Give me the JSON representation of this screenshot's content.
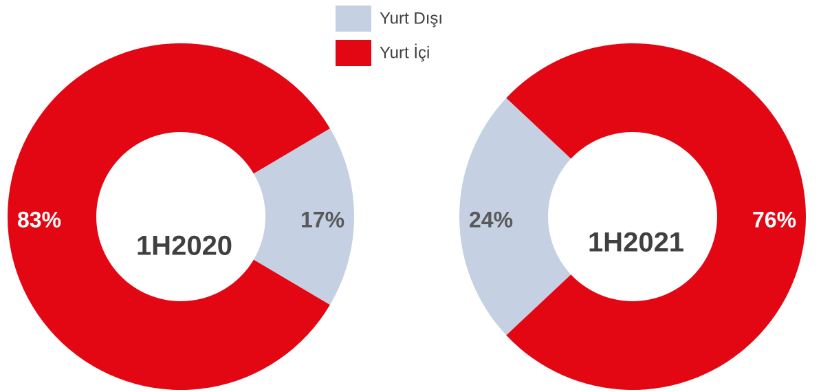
{
  "legend": {
    "categories": [
      "Yurt Dışı",
      "Yurt İçi"
    ],
    "colors": [
      "#c5d0e2",
      "#e30613"
    ]
  },
  "chart_data": [
    {
      "type": "donut",
      "title": "1H2020",
      "values": [
        17,
        83
      ],
      "value_labels": [
        "17%",
        "83%"
      ]
    },
    {
      "type": "donut",
      "title": "1H2021",
      "values": [
        24,
        76
      ],
      "value_labels": [
        "24%",
        "76%"
      ]
    }
  ]
}
